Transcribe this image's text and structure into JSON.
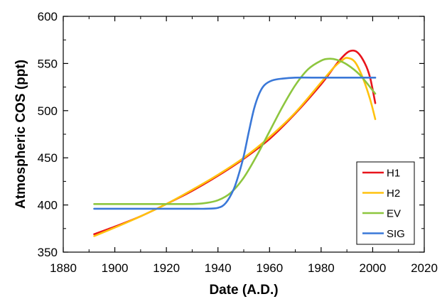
{
  "chart_data": {
    "type": "line",
    "title": "",
    "xlabel": "Date (A.D.)",
    "ylabel": "Atmospheric COS (ppt)",
    "xlim": [
      1880,
      2020
    ],
    "ylim": [
      350,
      600
    ],
    "xticks": [
      "1880",
      "1900",
      "1920",
      "1940",
      "1960",
      "1980",
      "2000",
      "2020"
    ],
    "yticks": [
      "350",
      "400",
      "450",
      "500",
      "550",
      "600"
    ],
    "grid": false,
    "legend_position": "bottom-right",
    "series": [
      {
        "name": "H1",
        "color": "#e8141c",
        "x": [
          1892,
          1900,
          1910,
          1920,
          1930,
          1940,
          1950,
          1960,
          1970,
          1980,
          1985,
          1988,
          1991,
          1994,
          1997,
          1999,
          2001
        ],
        "y": [
          369,
          377,
          388,
          401,
          415,
          431,
          449,
          470,
          497,
          528,
          546,
          556,
          563,
          562,
          550,
          535,
          508
        ]
      },
      {
        "name": "H2",
        "color": "#ffc20e",
        "x": [
          1892,
          1900,
          1910,
          1920,
          1930,
          1940,
          1950,
          1960,
          1970,
          1980,
          1985,
          1988,
          1990,
          1993,
          1996,
          1999,
          2001
        ],
        "y": [
          367,
          376,
          388,
          401,
          416,
          432,
          450,
          472,
          498,
          530,
          546,
          553,
          556,
          552,
          536,
          512,
          491
        ]
      },
      {
        "name": "EV",
        "color": "#8dc63f",
        "x": [
          1892,
          1900,
          1910,
          1920,
          1930,
          1935,
          1940,
          1945,
          1950,
          1955,
          1960,
          1965,
          1970,
          1975,
          1980,
          1983,
          1986,
          1990,
          1995,
          2001
        ],
        "y": [
          401,
          401,
          401,
          401,
          401,
          402,
          405,
          413,
          429,
          452,
          478,
          504,
          527,
          544,
          553,
          555,
          554,
          549,
          538,
          518
        ]
      },
      {
        "name": "SIG",
        "color": "#3a78d8",
        "x": [
          1892,
          1900,
          1910,
          1920,
          1930,
          1935,
          1940,
          1943,
          1946,
          1948,
          1950,
          1952,
          1954,
          1956,
          1958,
          1961,
          1965,
          1970,
          1980,
          1990,
          2001
        ],
        "y": [
          396,
          396,
          396,
          396,
          396,
          396,
          397,
          402,
          416,
          432,
          452,
          478,
          502,
          518,
          527,
          532,
          534,
          535,
          535,
          535,
          535
        ]
      }
    ]
  }
}
